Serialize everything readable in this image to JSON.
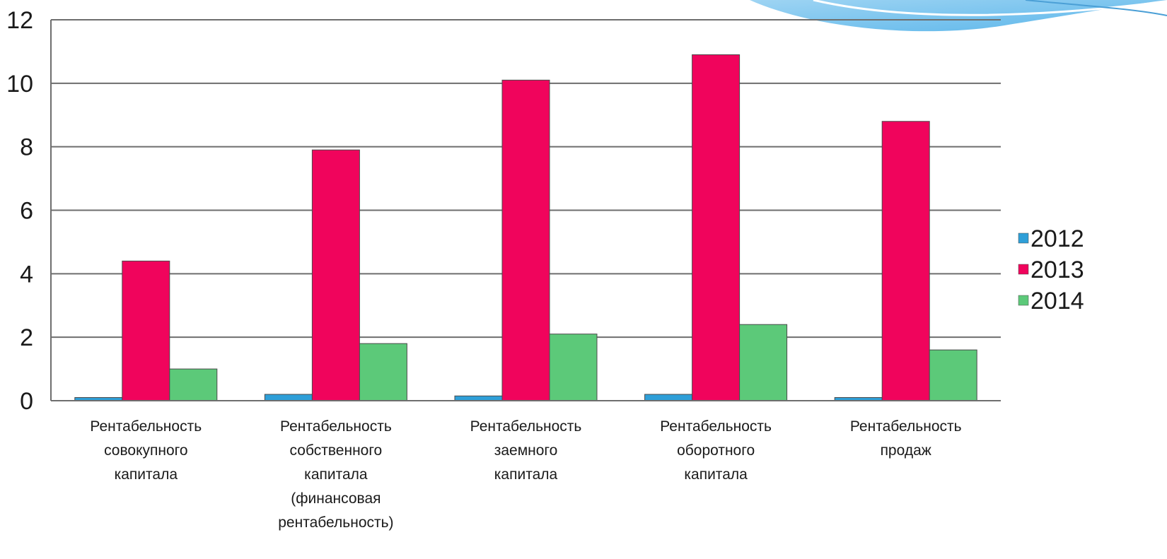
{
  "chart_data": {
    "type": "bar",
    "title": "",
    "xlabel": "",
    "ylabel": "",
    "ylim": [
      0,
      12
    ],
    "yticks": [
      0,
      2,
      4,
      6,
      8,
      10,
      12
    ],
    "grid": true,
    "legend_position": "right",
    "categories": [
      [
        "Рентабельность",
        "совокупного",
        "капитала"
      ],
      [
        "Рентабельность",
        "собственного",
        "капитала",
        "(финансовая",
        "рентабельность)"
      ],
      [
        "Рентабельность",
        "заемного",
        "капитала"
      ],
      [
        "Рентабельность",
        "оборотного",
        "капитала"
      ],
      [
        "Рентабельность",
        "продаж"
      ]
    ],
    "series": [
      {
        "name": "2012",
        "color": "#2e9fd8",
        "values": [
          0.1,
          0.2,
          0.15,
          0.2,
          0.1
        ]
      },
      {
        "name": "2013",
        "color": "#f0045c",
        "values": [
          4.4,
          7.9,
          10.1,
          10.9,
          8.8
        ]
      },
      {
        "name": "2014",
        "color": "#5cc979",
        "values": [
          1.0,
          1.8,
          2.1,
          2.4,
          1.6
        ]
      }
    ]
  }
}
